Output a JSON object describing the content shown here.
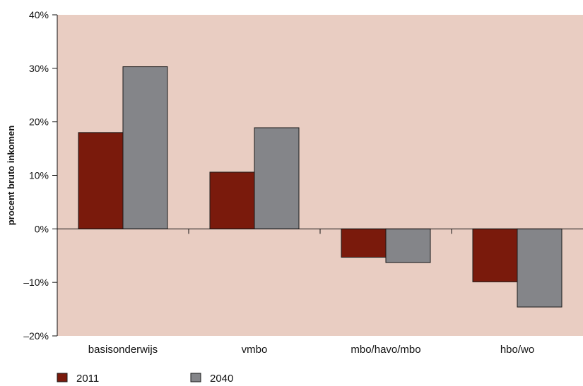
{
  "chart_data": {
    "type": "bar",
    "ylabel": "procent bruto inkomen",
    "ylim": [
      -20,
      40
    ],
    "yticks": [
      -20,
      -10,
      0,
      10,
      20,
      30,
      40
    ],
    "ytick_labels": [
      "–20%",
      "–10%",
      "0%",
      "10%",
      "20%",
      "30%",
      "40%"
    ],
    "categories": [
      "basisonderwijs",
      "vmbo",
      "mbo/havo/mbo",
      "hbo/wo"
    ],
    "series": [
      {
        "name": "2011",
        "color": "#7a1a0c",
        "values": [
          18,
          10.6,
          -5.3,
          -9.9
        ]
      },
      {
        "name": "2040",
        "color": "#848589",
        "values": [
          30.3,
          18.9,
          -6.3,
          -14.6
        ]
      }
    ],
    "plot_background": "#e9cdc2",
    "grid": false,
    "legend_position": "bottom-left"
  }
}
